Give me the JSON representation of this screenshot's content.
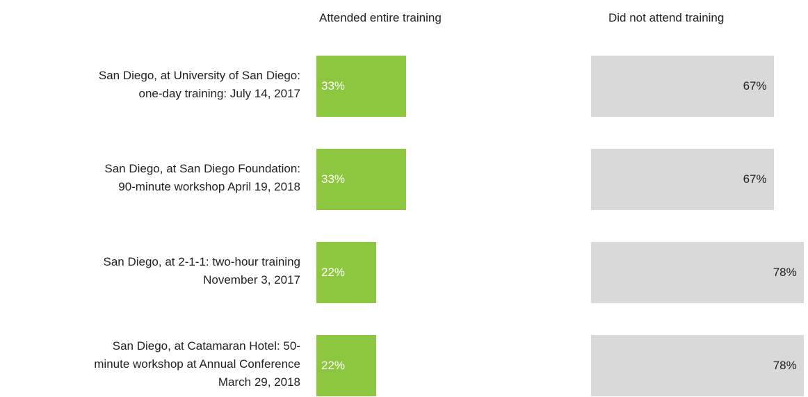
{
  "chart_data": {
    "type": "bar",
    "orientation": "horizontal",
    "categories": [
      "San Diego, at University of San Diego:\none-day training: July 14, 2017",
      "San Diego, at San Diego Foundation:\n90-minute workshop April 19, 2018",
      "San Diego, at 2-1-1: two-hour training\nNovember 3, 2017",
      "San Diego, at Catamaran Hotel: 50-\nminute workshop at Annual Conference\nMarch 29, 2018"
    ],
    "series": [
      {
        "name": "Attended entire training",
        "color": "#8dc63f",
        "values": [
          33,
          33,
          22,
          22
        ],
        "value_labels": [
          "33%",
          "33%",
          "22%",
          "22%"
        ]
      },
      {
        "name": "Did not attend training",
        "color": "#d9d9d9",
        "values": [
          67,
          67,
          78,
          78
        ],
        "value_labels": [
          "67%",
          "67%",
          "78%",
          "78%"
        ]
      }
    ]
  }
}
